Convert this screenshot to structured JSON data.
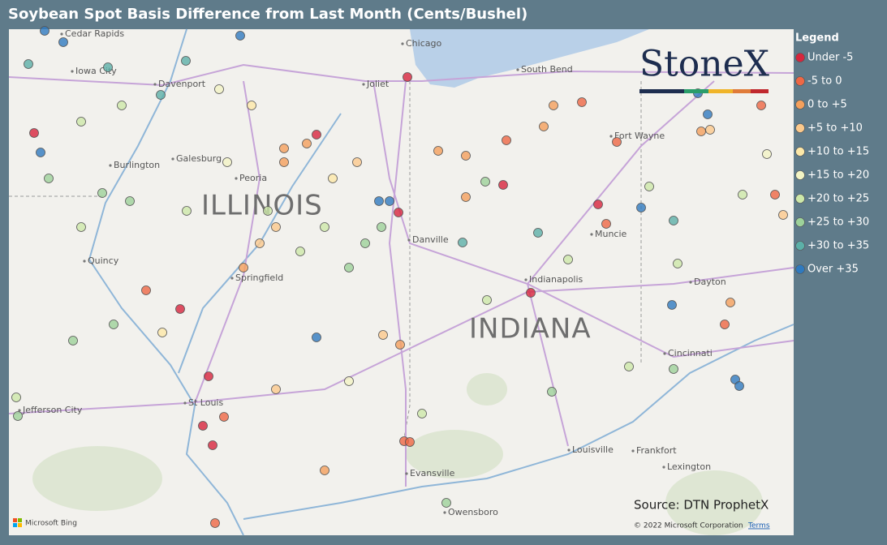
{
  "title": "Soybean Spot Basis Difference from Last Month (Cents/Bushel)",
  "legend": {
    "title": "Legend",
    "items": [
      {
        "label": "Under -5",
        "color": "#d7263d"
      },
      {
        "label": "-5 to 0",
        "color": "#ee6845"
      },
      {
        "label": "0 to +5",
        "color": "#f4a05c"
      },
      {
        "label": "+5 to +10",
        "color": "#fbc98c"
      },
      {
        "label": "+10 to +15",
        "color": "#fce8a8"
      },
      {
        "label": "+15 to +20",
        "color": "#f2f4c4"
      },
      {
        "label": "+20 to +25",
        "color": "#cde8a9"
      },
      {
        "label": "+25 to +30",
        "color": "#9dd29a"
      },
      {
        "label": "+30 to +35",
        "color": "#5cb0a8"
      },
      {
        "label": "Over +35",
        "color": "#2f7abf"
      }
    ]
  },
  "map": {
    "cities": [
      "Cedar Rapids",
      "Iowa City",
      "Davenport",
      "Joliet",
      "Chicago",
      "South Bend",
      "Fort Wayne",
      "Galesburg",
      "Burlington",
      "Peoria",
      "Quincy",
      "Springfield",
      "Danville",
      "Muncie",
      "Indianapolis",
      "Dayton",
      "Cincinnati",
      "Jefferson City",
      "St Louis",
      "Louisville",
      "Frankfort",
      "Lexington",
      "Evansville",
      "Owensboro"
    ],
    "states": [
      "ILLINOIS",
      "INDIANA"
    ],
    "points": [
      9,
      9,
      9,
      8,
      8,
      8,
      8,
      0,
      9,
      7,
      7,
      6,
      0,
      2,
      2,
      4,
      3,
      9,
      9,
      0,
      0,
      2,
      2,
      2,
      0,
      7,
      1,
      2,
      1,
      2,
      0,
      1,
      9,
      8,
      8,
      8,
      0,
      9,
      2,
      1,
      9,
      9,
      7,
      6,
      0,
      0,
      0,
      0,
      1,
      1,
      1,
      1,
      2,
      7,
      6,
      2,
      9,
      3,
      2,
      3,
      1,
      4,
      7,
      7,
      9,
      9,
      2,
      1,
      1,
      3,
      5,
      6,
      6,
      3,
      1,
      6,
      6,
      2,
      6,
      5,
      6,
      7,
      7,
      7,
      6,
      3,
      6,
      6,
      6,
      5,
      4,
      7,
      6,
      7,
      7,
      5,
      3,
      6
    ]
  },
  "logo": "StoneX",
  "source": "Source: DTN ProphetX",
  "attribution": {
    "copyright": "© 2022 Microsoft Corporation",
    "terms": "Terms",
    "provider": "Microsoft Bing"
  }
}
